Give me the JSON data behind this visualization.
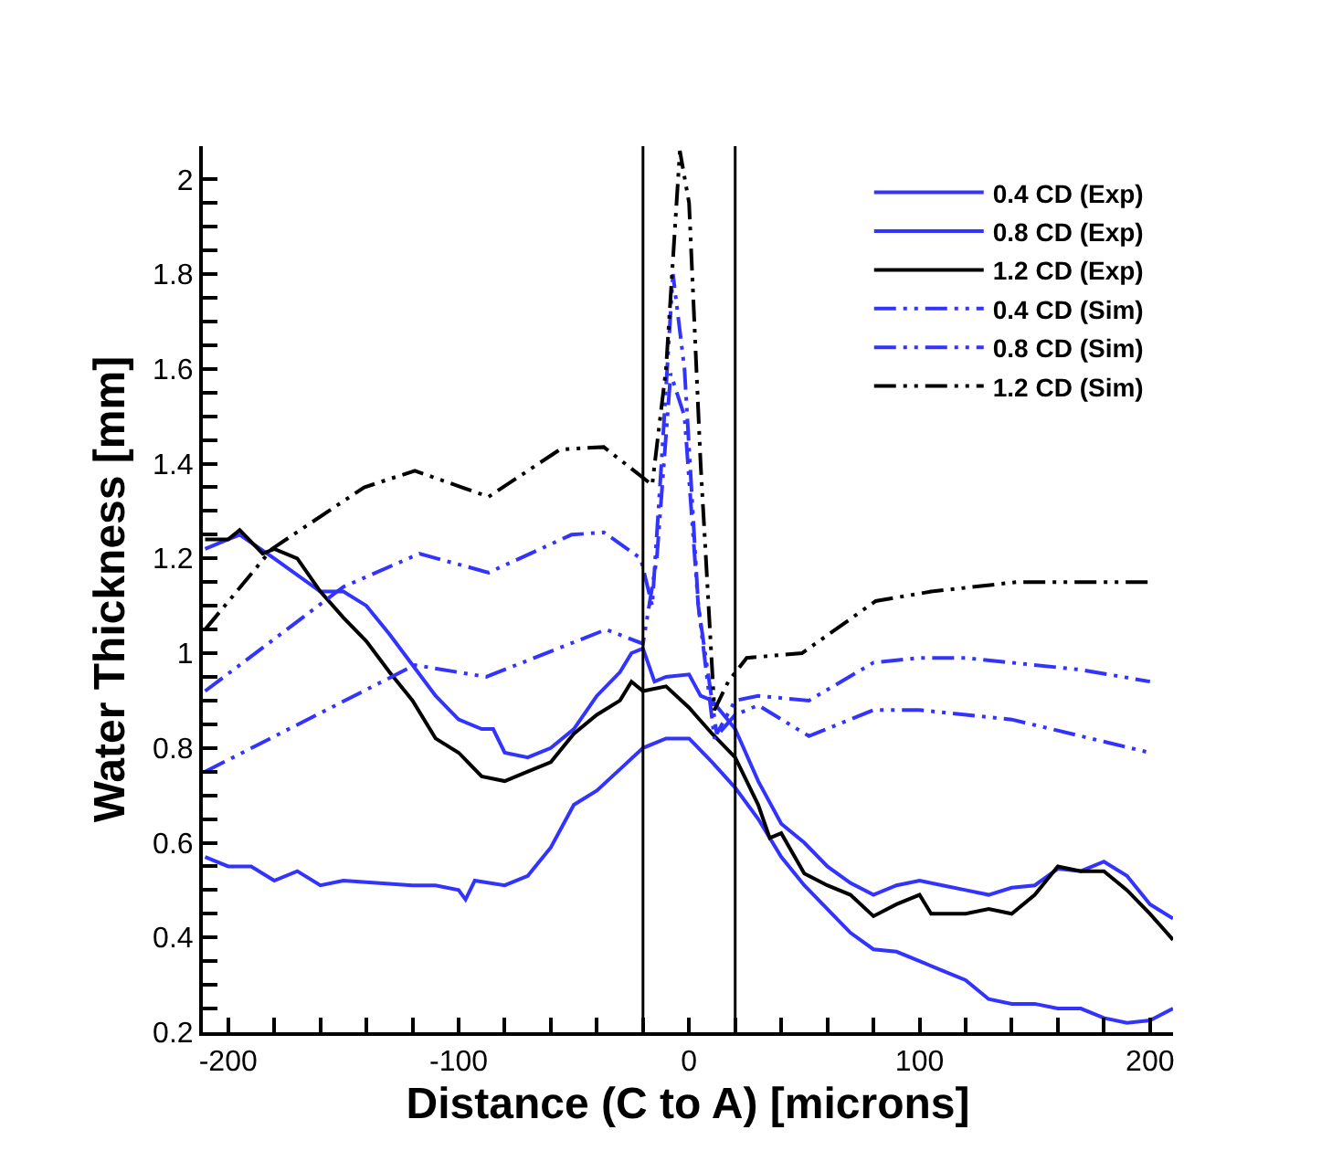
{
  "chart_data": {
    "type": "line",
    "xlabel": "Distance (C to A) [microns]",
    "ylabel": "Water Thickness [mm]",
    "xlim": [
      -211,
      210
    ],
    "ylim": [
      0.2,
      2.07
    ],
    "xticks": [
      -200,
      {
        "value": -180,
        "label": null
      },
      {
        "value": -160,
        "label": null
      },
      {
        "value": -140,
        "label": null
      },
      {
        "value": -120,
        "label": null
      },
      -100,
      {
        "value": -80,
        "label": null
      },
      {
        "value": -60,
        "label": null
      },
      {
        "value": -40,
        "label": null
      },
      {
        "value": -20,
        "label": null
      },
      0,
      {
        "value": 20,
        "label": null
      },
      {
        "value": 40,
        "label": null
      },
      {
        "value": 60,
        "label": null
      },
      {
        "value": 80,
        "label": null
      },
      100,
      {
        "value": 120,
        "label": null
      },
      {
        "value": 140,
        "label": null
      },
      {
        "value": 160,
        "label": null
      },
      {
        "value": 180,
        "label": null
      },
      200
    ],
    "yticks": [
      0.2,
      {
        "value": 0.25,
        "label": null
      },
      {
        "value": 0.3,
        "label": null
      },
      {
        "value": 0.35,
        "label": null
      },
      0.4,
      {
        "value": 0.45,
        "label": null
      },
      {
        "value": 0.5,
        "label": null
      },
      {
        "value": 0.55,
        "label": null
      },
      0.6,
      {
        "value": 0.65,
        "label": null
      },
      {
        "value": 0.7,
        "label": null
      },
      {
        "value": 0.75,
        "label": null
      },
      0.8,
      {
        "value": 0.85,
        "label": null
      },
      {
        "value": 0.9,
        "label": null
      },
      {
        "value": 0.95,
        "label": null
      },
      1,
      {
        "value": 1.05,
        "label": null
      },
      {
        "value": 1.1,
        "label": null
      },
      {
        "value": 1.15,
        "label": null
      },
      1.2,
      {
        "value": 1.25,
        "label": null
      },
      {
        "value": 1.3,
        "label": null
      },
      {
        "value": 1.35,
        "label": null
      },
      1.4,
      {
        "value": 1.45,
        "label": null
      },
      {
        "value": 1.5,
        "label": null
      },
      {
        "value": 1.55,
        "label": null
      },
      1.6,
      {
        "value": 1.65,
        "label": null
      },
      {
        "value": 1.7,
        "label": null
      },
      {
        "value": 1.75,
        "label": null
      },
      1.8,
      {
        "value": 1.85,
        "label": null
      },
      {
        "value": 1.9,
        "label": null
      },
      {
        "value": 1.95,
        "label": null
      },
      2
    ],
    "grid": false,
    "legend": "top right",
    "marker": "none",
    "ref_lines": [
      {
        "axis": "x",
        "value": -20,
        "color": "#000000"
      },
      {
        "axis": "x",
        "value": 20,
        "color": "#000000"
      }
    ],
    "series": [
      {
        "name": "0.4 CD (Exp)",
        "color": "#3333ff",
        "line_style": "solid",
        "x": [
          -210,
          -200,
          -190,
          -180,
          -170,
          -160,
          -150,
          -120,
          -110,
          -100,
          -97,
          -93,
          -80,
          -70,
          -60,
          -50,
          -40,
          -30,
          -20,
          -10,
          0,
          10,
          20,
          30,
          40,
          50,
          60,
          70,
          80,
          90,
          100,
          110,
          120,
          130,
          140,
          150,
          160,
          170,
          180,
          190,
          200,
          210
        ],
        "values": [
          0.57,
          0.55,
          0.55,
          0.52,
          0.54,
          0.51,
          0.52,
          0.51,
          0.51,
          0.5,
          0.48,
          0.52,
          0.51,
          0.53,
          0.59,
          0.68,
          0.71,
          0.755,
          0.8,
          0.82,
          0.82,
          0.77,
          0.716,
          0.65,
          0.57,
          0.51,
          0.46,
          0.41,
          0.375,
          0.37,
          0.35,
          0.33,
          0.31,
          0.27,
          0.26,
          0.26,
          0.25,
          0.25,
          0.23,
          0.22,
          0.225,
          0.25
        ]
      },
      {
        "name": "0.8 CD (Exp)",
        "color": "#3333ff",
        "line_style": "solid",
        "x": [
          -210,
          -195,
          -180,
          -160,
          -150,
          -140,
          -130,
          -120,
          -110,
          -100,
          -90,
          -85,
          -80,
          -70,
          -60,
          -50,
          -40,
          -30,
          -25,
          -20,
          -15,
          -10,
          0,
          5,
          10,
          20,
          30,
          40,
          50,
          60,
          70,
          80,
          90,
          100,
          110,
          120,
          130,
          140,
          150,
          160,
          170,
          180,
          190,
          200,
          210
        ],
        "values": [
          1.22,
          1.25,
          1.2,
          1.13,
          1.13,
          1.1,
          1.04,
          0.975,
          0.91,
          0.86,
          0.84,
          0.84,
          0.79,
          0.78,
          0.8,
          0.84,
          0.91,
          0.96,
          1.0,
          1.01,
          0.94,
          0.95,
          0.955,
          0.91,
          0.9,
          0.84,
          0.73,
          0.64,
          0.6,
          0.55,
          0.515,
          0.49,
          0.51,
          0.52,
          0.51,
          0.5,
          0.49,
          0.505,
          0.51,
          0.545,
          0.54,
          0.56,
          0.53,
          0.47,
          0.44
        ]
      },
      {
        "name": "1.2 CD (Exp)",
        "color": "#000000",
        "line_style": "solid",
        "x": [
          -210,
          -200,
          -195,
          -185,
          -180,
          -170,
          -160,
          -150,
          -140,
          -130,
          -120,
          -110,
          -100,
          -90,
          -80,
          -70,
          -60,
          -50,
          -40,
          -30,
          -25,
          -20,
          -10,
          0,
          10,
          20,
          30,
          35,
          40,
          50,
          60,
          70,
          80,
          90,
          100,
          105,
          120,
          130,
          140,
          150,
          160,
          170,
          180,
          190,
          200,
          210
        ],
        "values": [
          1.24,
          1.24,
          1.26,
          1.21,
          1.22,
          1.2,
          1.13,
          1.075,
          1.025,
          0.96,
          0.9,
          0.82,
          0.79,
          0.74,
          0.73,
          0.75,
          0.77,
          0.83,
          0.87,
          0.9,
          0.94,
          0.92,
          0.93,
          0.885,
          0.83,
          0.78,
          0.68,
          0.61,
          0.62,
          0.535,
          0.51,
          0.49,
          0.445,
          0.47,
          0.49,
          0.45,
          0.45,
          0.46,
          0.45,
          0.49,
          0.55,
          0.54,
          0.54,
          0.5,
          0.45,
          0.395
        ]
      },
      {
        "name": "0.4 CD (Sim)",
        "color": "#3333ff",
        "line_style": "dashdot",
        "x": [
          -210,
          -119,
          -88,
          -36,
          -20,
          -14,
          -8,
          -2,
          4,
          11,
          20,
          30,
          52,
          80,
          100,
          140,
          200
        ],
        "values": [
          0.75,
          0.975,
          0.95,
          1.05,
          1.02,
          1.2,
          1.59,
          1.5,
          1.1,
          0.82,
          0.87,
          0.89,
          0.825,
          0.88,
          0.88,
          0.86,
          0.79
        ]
      },
      {
        "name": "0.8 CD (Sim)",
        "color": "#3333ff",
        "line_style": "dashdot",
        "x": [
          -210,
          -180,
          -150,
          -117,
          -87,
          -51,
          -37,
          -21,
          -16,
          -12,
          -7,
          -2,
          4,
          12,
          20,
          30,
          52,
          80,
          100,
          120,
          140,
          170,
          200
        ],
        "values": [
          0.92,
          1.03,
          1.14,
          1.21,
          1.17,
          1.25,
          1.255,
          1.2,
          1.1,
          1.4,
          1.8,
          1.6,
          1.1,
          0.83,
          0.9,
          0.91,
          0.9,
          0.98,
          0.99,
          0.99,
          0.98,
          0.965,
          0.94
        ]
      },
      {
        "name": "1.2 CD (Sim)",
        "color": "#000000",
        "line_style": "dashdot",
        "x": [
          -210,
          -181,
          -141,
          -119,
          -87,
          -56,
          -37,
          -16,
          -10,
          -4,
          0,
          5,
          11,
          17,
          25,
          49,
          81,
          105,
          142,
          200
        ],
        "values": [
          1.05,
          1.22,
          1.35,
          1.385,
          1.33,
          1.43,
          1.435,
          1.355,
          1.6,
          2.06,
          1.95,
          1.4,
          0.88,
          0.94,
          0.99,
          1.0,
          1.11,
          1.13,
          1.15,
          1.15
        ]
      }
    ]
  }
}
